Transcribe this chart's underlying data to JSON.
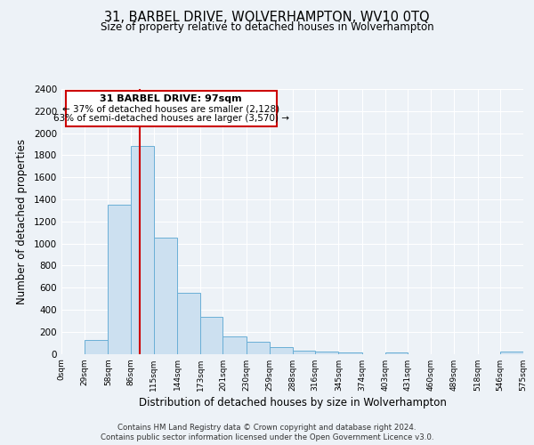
{
  "title": "31, BARBEL DRIVE, WOLVERHAMPTON, WV10 0TQ",
  "subtitle": "Size of property relative to detached houses in Wolverhampton",
  "xlabel": "Distribution of detached houses by size in Wolverhampton",
  "ylabel": "Number of detached properties",
  "footer_lines": [
    "Contains HM Land Registry data © Crown copyright and database right 2024.",
    "Contains public sector information licensed under the Open Government Licence v3.0."
  ],
  "bin_edges": [
    0,
    29,
    58,
    86,
    115,
    144,
    173,
    201,
    230,
    259,
    288,
    316,
    345,
    374,
    403,
    431,
    460,
    489,
    518,
    546,
    575
  ],
  "bar_heights": [
    0,
    125,
    1350,
    1880,
    1050,
    550,
    335,
    160,
    105,
    60,
    25,
    20,
    10,
    0,
    10,
    0,
    0,
    0,
    0,
    20
  ],
  "bin_labels": [
    "0sqm",
    "29sqm",
    "58sqm",
    "86sqm",
    "115sqm",
    "144sqm",
    "173sqm",
    "201sqm",
    "230sqm",
    "259sqm",
    "288sqm",
    "316sqm",
    "345sqm",
    "374sqm",
    "403sqm",
    "431sqm",
    "460sqm",
    "489sqm",
    "518sqm",
    "546sqm",
    "575sqm"
  ],
  "red_line_x": 97,
  "annotation_title": "31 BARBEL DRIVE: 97sqm",
  "annotation_line1": "← 37% of detached houses are smaller (2,128)",
  "annotation_line2": "63% of semi-detached houses are larger (3,570) →",
  "bar_color": "#cce0f0",
  "bar_edge_color": "#6aafd6",
  "red_line_color": "#cc0000",
  "annotation_box_edge_color": "#cc0000",
  "ylim": [
    0,
    2400
  ],
  "background_color": "#edf2f7",
  "plot_bg_color": "#edf2f7",
  "grid_color": "#ffffff"
}
